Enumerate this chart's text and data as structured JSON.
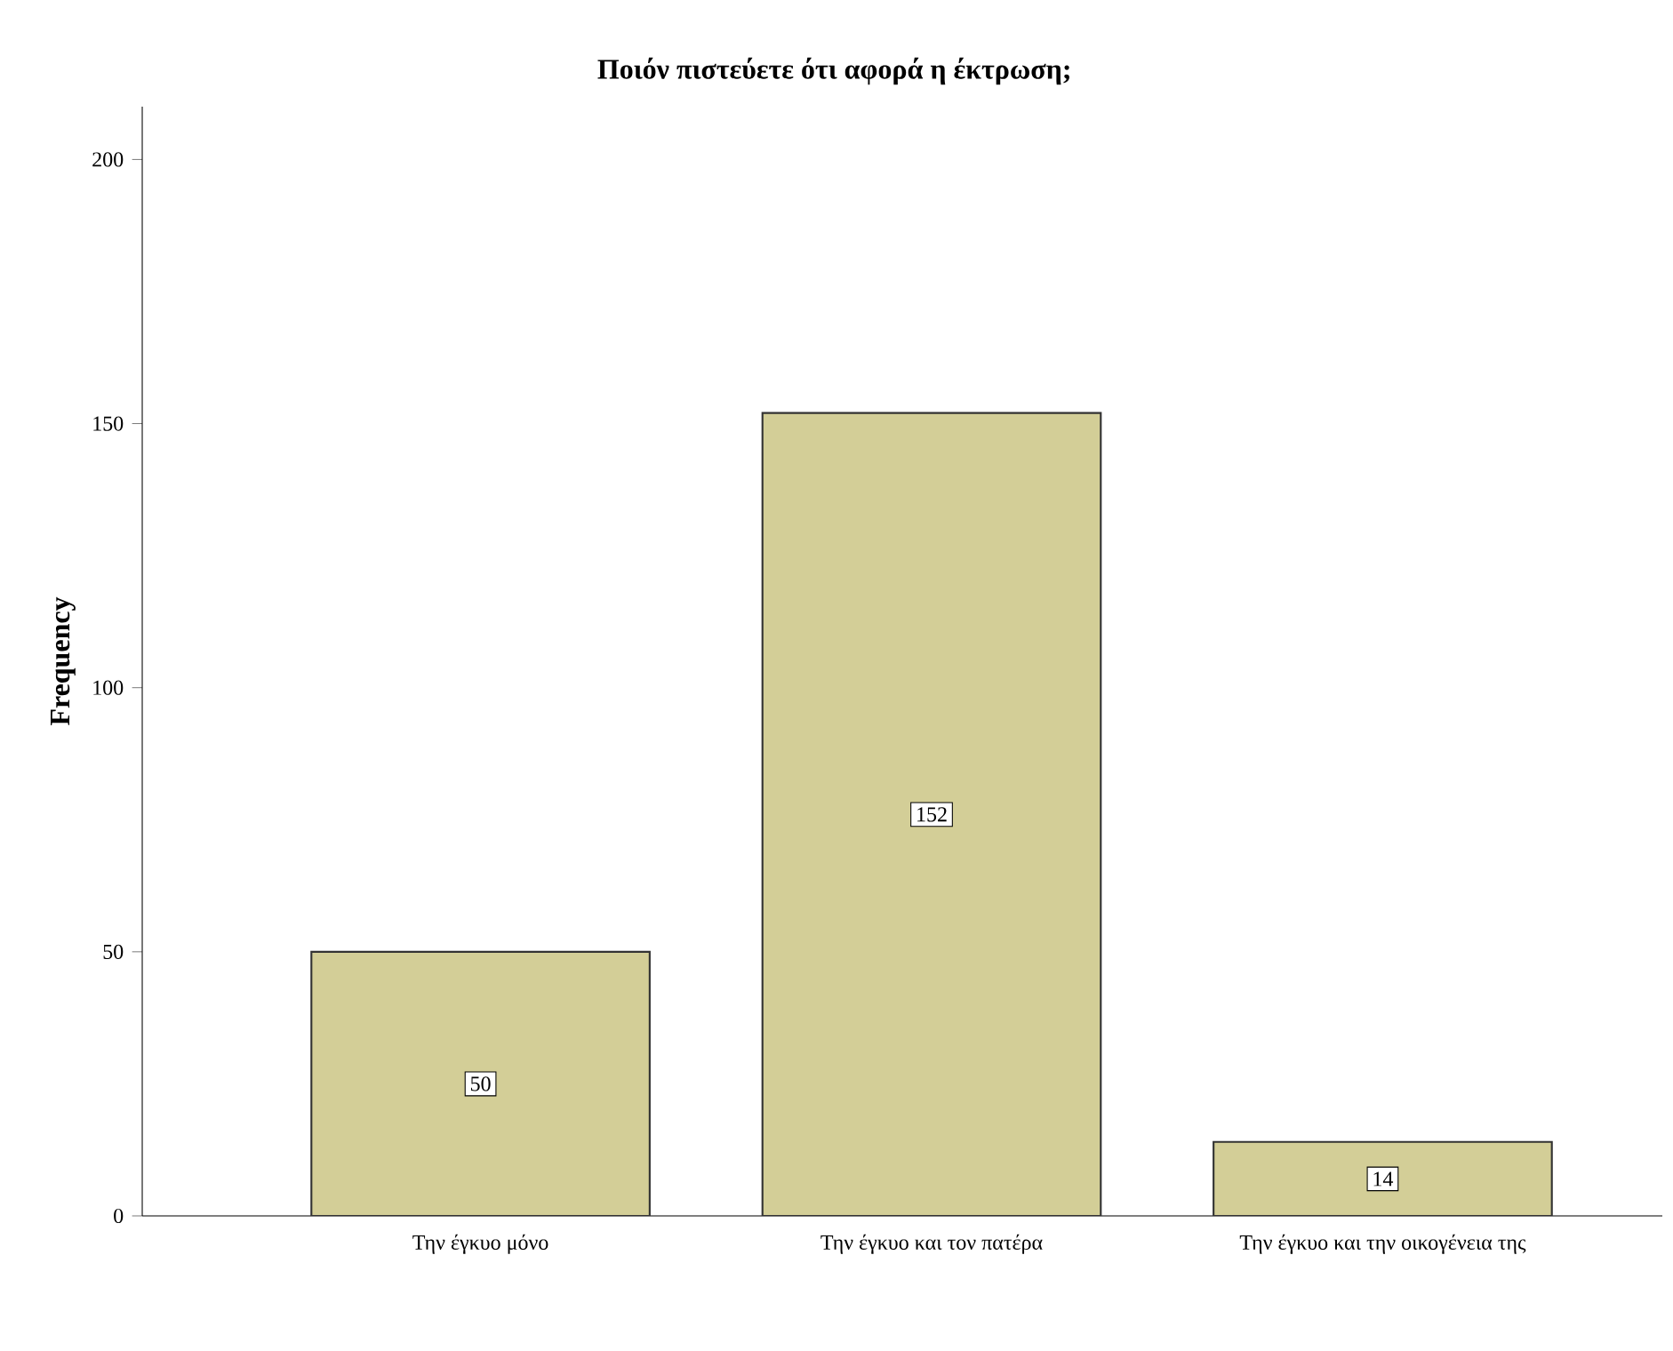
{
  "chart_data": {
    "type": "bar",
    "title": "Ποιόν πιστεύετε ότι αφορά η έκτρωση;",
    "ylabel": "Frequency",
    "categories": [
      "Την έγκυο μόνο",
      "Την έγκυο και τον πατέρα",
      "Την έγκυο και την οικογένεια της"
    ],
    "values": [
      50,
      152,
      14
    ],
    "color": "#d3ce97",
    "ylim": [
      0,
      210
    ],
    "yticks": [
      0,
      50,
      100,
      150,
      200
    ],
    "grid": false,
    "data_labels": true
  }
}
